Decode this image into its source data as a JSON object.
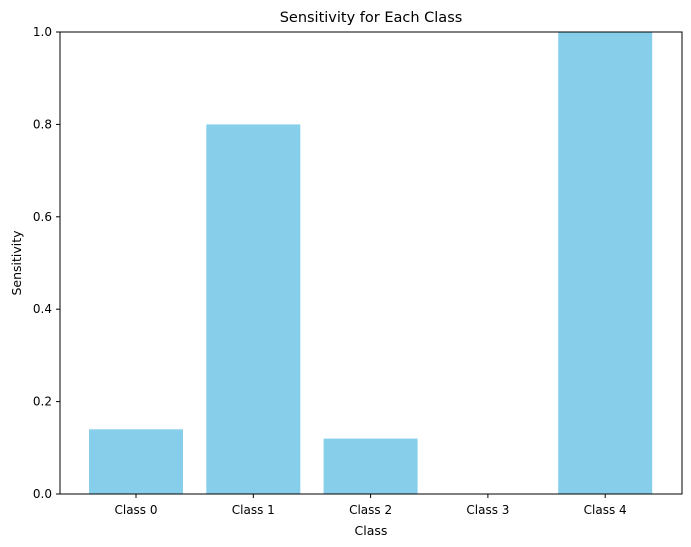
{
  "chart_data": {
    "type": "bar",
    "title": "Sensitivity for Each Class",
    "xlabel": "Class",
    "ylabel": "Sensitivity",
    "categories": [
      "Class 0",
      "Class 1",
      "Class 2",
      "Class 3",
      "Class 4"
    ],
    "values": [
      0.14,
      0.8,
      0.12,
      0.0,
      1.0
    ],
    "ylim": [
      0,
      1.0
    ],
    "yticks": [
      "0.0",
      "0.2",
      "0.4",
      "0.6",
      "0.8",
      "1.0"
    ],
    "bar_color": "#87ceeb",
    "grid": false,
    "legend": "none"
  }
}
